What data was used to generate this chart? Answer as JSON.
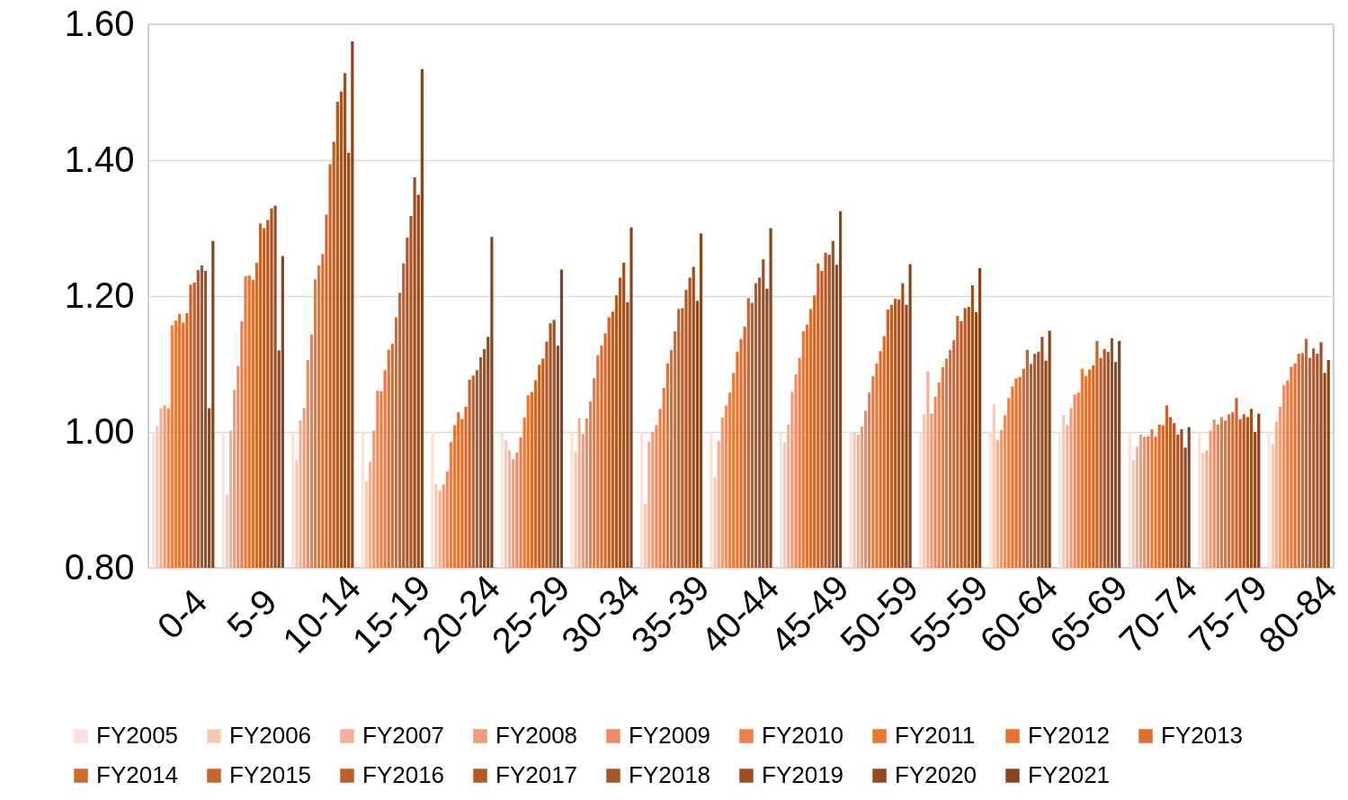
{
  "chart_data": {
    "type": "bar",
    "categories": [
      "0-4",
      "5-9",
      "10-14",
      "15-19",
      "20-24",
      "25-29",
      "30-34",
      "35-39",
      "40-44",
      "45-49",
      "50-59",
      "55-59",
      "60-64",
      "65-69",
      "70-74",
      "75-79",
      "80-84"
    ],
    "ylim": [
      0.8,
      1.6
    ],
    "yticks": [
      {
        "value": 0.8,
        "label": "0.80"
      },
      {
        "value": 1.0,
        "label": "1.00"
      },
      {
        "value": 1.2,
        "label": "1.20"
      },
      {
        "value": 1.4,
        "label": "1.40"
      },
      {
        "value": 1.6,
        "label": "1.60"
      }
    ],
    "grid": "y",
    "legend": "bottom",
    "series": [
      {
        "name": "FY2005",
        "color": "#fbe2d9",
        "values": [
          1.0,
          1.0,
          1.0,
          1.0,
          1.0,
          1.0,
          1.0,
          1.0,
          1.0,
          1.0,
          1.0,
          1.0,
          1.0,
          1.0,
          1.0,
          1.0,
          1.0
        ]
      },
      {
        "name": "FY2006",
        "color": "#f6c8b6",
        "values": [
          1.009,
          0.908,
          0.959,
          0.927,
          0.923,
          0.988,
          0.971,
          0.894,
          0.933,
          0.985,
          0.999,
          1.026,
          1.041,
          1.025,
          0.959,
          0.969,
          0.983
        ]
      },
      {
        "name": "FY2007",
        "color": "#f2b195",
        "values": [
          1.035,
          1.002,
          1.017,
          0.956,
          0.913,
          0.973,
          1.02,
          0.986,
          0.987,
          1.011,
          0.996,
          1.089,
          0.988,
          1.01,
          0.978,
          0.973,
          1.015
        ]
      },
      {
        "name": "FY2008",
        "color": "#ef9d79",
        "values": [
          1.039,
          1.062,
          1.035,
          1.002,
          0.923,
          0.96,
          0.997,
          1.0,
          1.021,
          1.059,
          1.008,
          1.027,
          1.003,
          1.035,
          0.996,
          1.002,
          1.037
        ]
      },
      {
        "name": "FY2009",
        "color": "#ed8c60",
        "values": [
          1.035,
          1.097,
          1.106,
          1.061,
          0.942,
          0.97,
          1.02,
          1.01,
          1.039,
          1.085,
          1.031,
          1.052,
          1.025,
          1.055,
          0.993,
          1.018,
          1.069
        ]
      },
      {
        "name": "FY2010",
        "color": "#ec7f4b",
        "values": [
          1.157,
          1.163,
          1.143,
          1.06,
          0.985,
          0.992,
          1.045,
          1.034,
          1.058,
          1.109,
          1.058,
          1.073,
          1.05,
          1.058,
          0.994,
          1.011,
          1.076
        ]
      },
      {
        "name": "FY2011",
        "color": "#eb7839",
        "values": [
          1.164,
          1.229,
          1.225,
          1.091,
          1.01,
          1.021,
          1.079,
          1.065,
          1.087,
          1.148,
          1.082,
          1.095,
          1.067,
          1.093,
          1.004,
          1.022,
          1.096
        ]
      },
      {
        "name": "FY2012",
        "color": "#e87230",
        "values": [
          1.174,
          1.23,
          1.245,
          1.121,
          1.029,
          1.054,
          1.113,
          1.101,
          1.118,
          1.158,
          1.101,
          1.108,
          1.079,
          1.082,
          0.993,
          1.017,
          1.101
        ]
      },
      {
        "name": "FY2013",
        "color": "#e06d2d",
        "values": [
          1.161,
          1.224,
          1.262,
          1.13,
          1.019,
          1.059,
          1.127,
          1.121,
          1.137,
          1.181,
          1.119,
          1.121,
          1.081,
          1.092,
          1.011,
          1.026,
          1.115
        ]
      },
      {
        "name": "FY2014",
        "color": "#d5682b",
        "values": [
          1.175,
          1.249,
          1.32,
          1.169,
          1.037,
          1.076,
          1.145,
          1.148,
          1.155,
          1.201,
          1.141,
          1.135,
          1.093,
          1.098,
          1.01,
          1.029,
          1.116
        ]
      },
      {
        "name": "FY2015",
        "color": "#ca6329",
        "values": [
          1.217,
          1.307,
          1.394,
          1.205,
          1.077,
          1.099,
          1.169,
          1.181,
          1.197,
          1.248,
          1.18,
          1.171,
          1.121,
          1.134,
          1.039,
          1.05,
          1.137
        ]
      },
      {
        "name": "FY2016",
        "color": "#bf5e27",
        "values": [
          1.22,
          1.3,
          1.427,
          1.248,
          1.083,
          1.108,
          1.177,
          1.182,
          1.19,
          1.237,
          1.187,
          1.163,
          1.1,
          1.109,
          1.022,
          1.019,
          1.109
        ]
      },
      {
        "name": "FY2017",
        "color": "#b45925",
        "values": [
          1.238,
          1.312,
          1.486,
          1.286,
          1.091,
          1.133,
          1.201,
          1.209,
          1.219,
          1.264,
          1.196,
          1.182,
          1.115,
          1.122,
          1.013,
          1.026,
          1.123
        ]
      },
      {
        "name": "FY2018",
        "color": "#a95423",
        "values": [
          1.245,
          1.329,
          1.501,
          1.318,
          1.11,
          1.16,
          1.227,
          1.227,
          1.227,
          1.261,
          1.195,
          1.184,
          1.118,
          1.118,
          0.996,
          1.022,
          1.115
        ]
      },
      {
        "name": "FY2019",
        "color": "#9e4f21",
        "values": [
          1.237,
          1.333,
          1.528,
          1.375,
          1.122,
          1.165,
          1.249,
          1.243,
          1.254,
          1.281,
          1.219,
          1.216,
          1.14,
          1.138,
          1.004,
          1.034,
          1.132
        ]
      },
      {
        "name": "FY2020",
        "color": "#934a1f",
        "values": [
          1.035,
          1.12,
          1.411,
          1.349,
          1.14,
          1.127,
          1.191,
          1.193,
          1.211,
          1.246,
          1.187,
          1.176,
          1.105,
          1.103,
          0.977,
          1.0,
          1.087
        ]
      },
      {
        "name": "FY2021",
        "color": "#88451d",
        "values": [
          1.281,
          1.259,
          1.575,
          1.534,
          1.287,
          1.239,
          1.301,
          1.292,
          1.3,
          1.325,
          1.247,
          1.241,
          1.149,
          1.134,
          1.007,
          1.027,
          1.106
        ]
      }
    ]
  }
}
